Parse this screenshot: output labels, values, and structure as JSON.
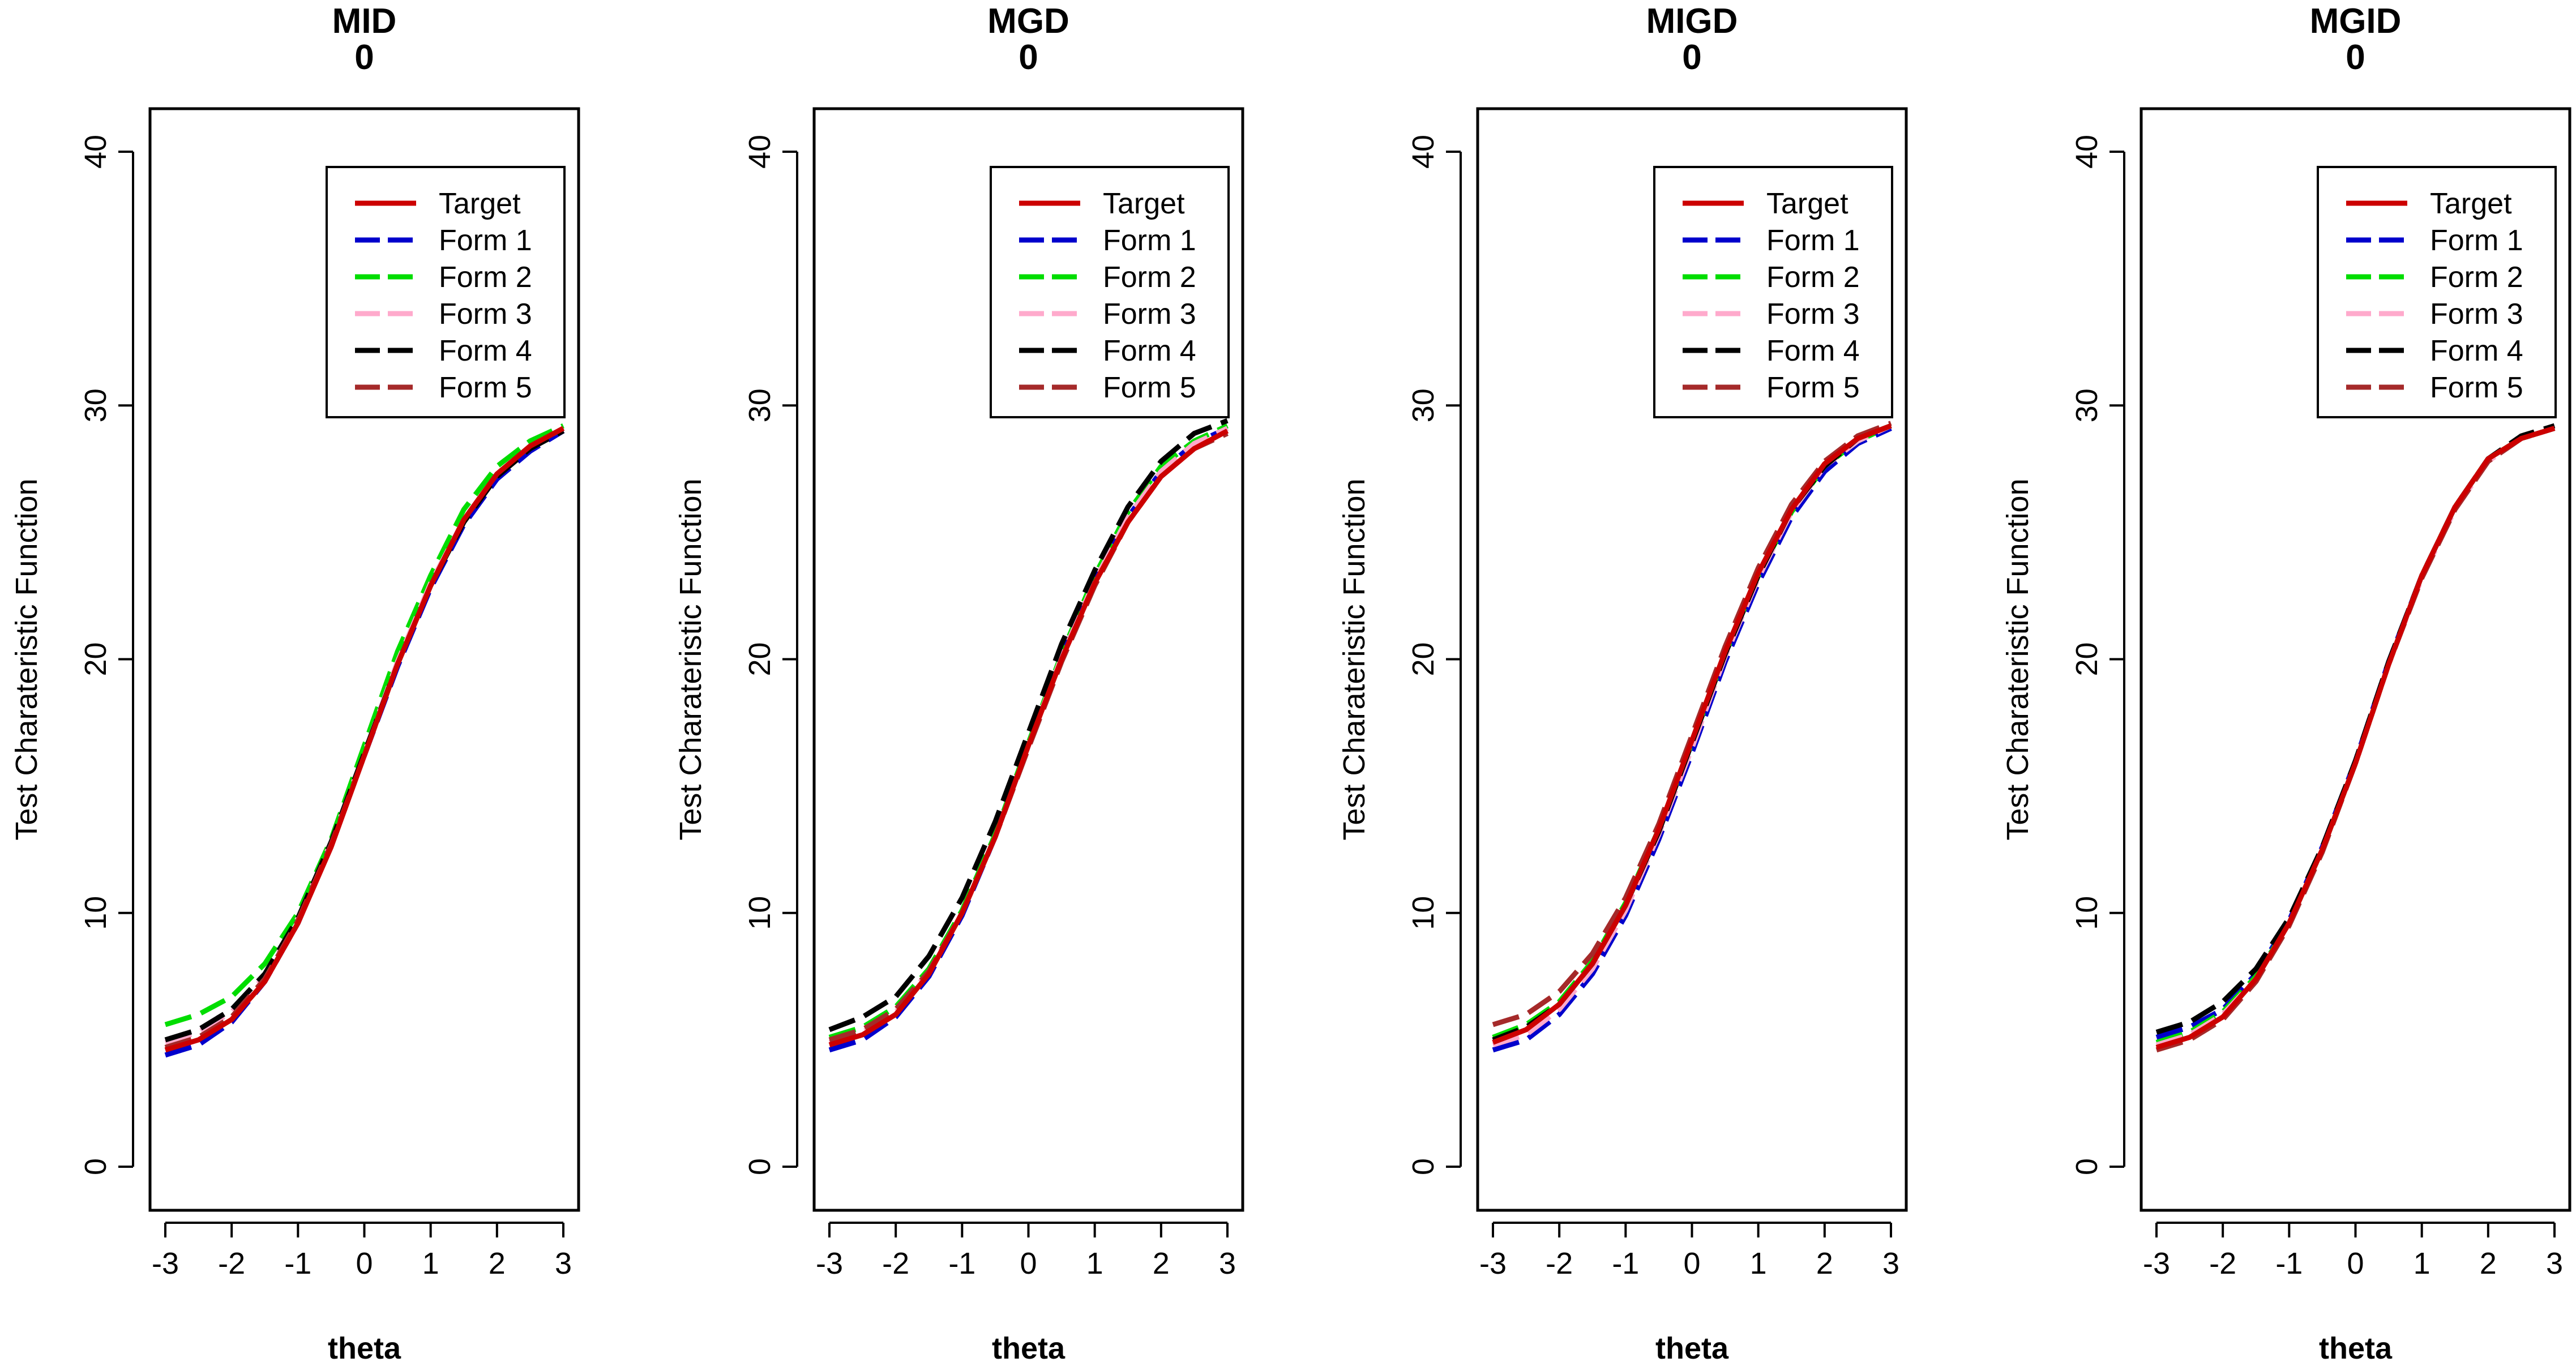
{
  "theme": {
    "background": "#ffffff",
    "axis_color": "#000000"
  },
  "chart_data": [
    {
      "type": "line",
      "title": "MID",
      "subtitle": "0",
      "xlabel": "theta",
      "ylabel": "Test Charateristic Function",
      "xlim": [
        -3,
        3
      ],
      "ylim": [
        0,
        40
      ],
      "xticks": [
        "-3",
        "-2",
        "-1",
        "0",
        "1",
        "2",
        "3"
      ],
      "yticks": [
        "0",
        "10",
        "20",
        "30",
        "40"
      ],
      "legend_position": "top-right",
      "grid": false,
      "x": [
        -3,
        -2.5,
        -2,
        -1.5,
        -1,
        -0.5,
        0,
        0.5,
        1,
        1.5,
        2,
        2.5,
        3
      ],
      "series": [
        {
          "name": "Target",
          "color": "#cc0000",
          "values": [
            4.6,
            5.0,
            5.8,
            7.3,
            9.6,
            12.6,
            16.2,
            19.8,
            22.9,
            25.5,
            27.3,
            28.4,
            29.1
          ]
        },
        {
          "name": "Form 1",
          "color": "#0000cc",
          "values": [
            4.4,
            4.8,
            5.7,
            7.3,
            9.6,
            12.7,
            16.2,
            19.7,
            22.8,
            25.3,
            27.1,
            28.2,
            29.0
          ]
        },
        {
          "name": "Form 2",
          "color": "#00dd00",
          "values": [
            5.6,
            6.0,
            6.7,
            8.0,
            10.0,
            12.9,
            16.6,
            20.3,
            23.3,
            25.9,
            27.6,
            28.6,
            29.2
          ]
        },
        {
          "name": "Form 3",
          "color": "#ffaacc",
          "values": [
            4.9,
            5.3,
            6.1,
            7.5,
            9.8,
            12.8,
            16.3,
            19.9,
            23.0,
            25.5,
            27.3,
            28.4,
            29.1
          ]
        },
        {
          "name": "Form 4",
          "color": "#000000",
          "values": [
            5.0,
            5.4,
            6.2,
            7.6,
            9.8,
            12.8,
            16.3,
            19.8,
            22.9,
            25.4,
            27.2,
            28.3,
            29.0
          ]
        },
        {
          "name": "Form 5",
          "color": "#a52a2a",
          "values": [
            4.7,
            5.1,
            5.9,
            7.4,
            9.7,
            12.7,
            16.2,
            19.8,
            22.9,
            25.5,
            27.3,
            28.4,
            29.1
          ]
        }
      ]
    },
    {
      "type": "line",
      "title": "MGD",
      "subtitle": "0",
      "xlabel": "theta",
      "ylabel": "Test Charateristic Function",
      "xlim": [
        -3,
        3
      ],
      "ylim": [
        0,
        40
      ],
      "xticks": [
        "-3",
        "-2",
        "-1",
        "0",
        "1",
        "2",
        "3"
      ],
      "yticks": [
        "0",
        "10",
        "20",
        "30",
        "40"
      ],
      "legend_position": "top-right",
      "grid": false,
      "x": [
        -3,
        -2.5,
        -2,
        -1.5,
        -1,
        -0.5,
        0,
        0.5,
        1,
        1.5,
        2,
        2.5,
        3
      ],
      "series": [
        {
          "name": "Target",
          "color": "#cc0000",
          "values": [
            4.8,
            5.2,
            6.0,
            7.6,
            10.0,
            13.0,
            16.6,
            20.0,
            23.0,
            25.4,
            27.2,
            28.3,
            29.0
          ]
        },
        {
          "name": "Form 1",
          "color": "#0000cc",
          "values": [
            4.6,
            5.0,
            5.9,
            7.5,
            9.9,
            13.0,
            16.6,
            20.1,
            23.1,
            25.6,
            27.4,
            28.5,
            29.1
          ]
        },
        {
          "name": "Form 2",
          "color": "#00dd00",
          "values": [
            5.1,
            5.5,
            6.3,
            7.8,
            10.1,
            13.1,
            16.7,
            20.2,
            23.3,
            25.8,
            27.6,
            28.6,
            29.2
          ]
        },
        {
          "name": "Form 3",
          "color": "#ffaacc",
          "values": [
            4.9,
            5.3,
            6.1,
            7.7,
            10.0,
            13.0,
            16.6,
            20.1,
            23.1,
            25.6,
            27.4,
            28.5,
            29.1
          ]
        },
        {
          "name": "Form 4",
          "color": "#000000",
          "values": [
            5.4,
            5.9,
            6.7,
            8.3,
            10.6,
            13.6,
            17.1,
            20.6,
            23.5,
            26.0,
            27.8,
            28.9,
            29.4
          ]
        },
        {
          "name": "Form 5",
          "color": "#a52a2a",
          "values": [
            5.0,
            5.4,
            6.2,
            7.7,
            10.0,
            13.0,
            16.5,
            19.9,
            22.9,
            25.4,
            27.2,
            28.3,
            28.9
          ]
        }
      ]
    },
    {
      "type": "line",
      "title": "MIGD",
      "subtitle": "0",
      "xlabel": "theta",
      "ylabel": "Test Charateristic Function",
      "xlim": [
        -3,
        3
      ],
      "ylim": [
        0,
        40
      ],
      "xticks": [
        "-3",
        "-2",
        "-1",
        "0",
        "1",
        "2",
        "3"
      ],
      "yticks": [
        "0",
        "10",
        "20",
        "30",
        "40"
      ],
      "legend_position": "top-right",
      "grid": false,
      "x": [
        -3,
        -2.5,
        -2,
        -1.5,
        -1,
        -0.5,
        0,
        0.5,
        1,
        1.5,
        2,
        2.5,
        3
      ],
      "series": [
        {
          "name": "Target",
          "color": "#cc0000",
          "values": [
            4.9,
            5.4,
            6.4,
            8.0,
            10.3,
            13.3,
            16.8,
            20.3,
            23.4,
            25.9,
            27.7,
            28.7,
            29.2
          ]
        },
        {
          "name": "Form 1",
          "color": "#0000cc",
          "values": [
            4.6,
            5.0,
            6.0,
            7.6,
            9.9,
            12.9,
            16.3,
            19.9,
            23.0,
            25.6,
            27.4,
            28.5,
            29.1
          ]
        },
        {
          "name": "Form 2",
          "color": "#00dd00",
          "values": [
            5.1,
            5.6,
            6.5,
            8.1,
            10.4,
            13.3,
            16.7,
            20.2,
            23.3,
            25.8,
            27.6,
            28.6,
            29.2
          ]
        },
        {
          "name": "Form 3",
          "color": "#ffaacc",
          "values": [
            4.8,
            5.2,
            6.2,
            7.8,
            10.1,
            13.1,
            16.5,
            20.1,
            23.2,
            25.8,
            27.6,
            28.6,
            29.2
          ]
        },
        {
          "name": "Form 4",
          "color": "#000000",
          "values": [
            5.0,
            5.5,
            6.4,
            8.0,
            10.3,
            13.2,
            16.7,
            20.2,
            23.3,
            25.9,
            27.6,
            28.7,
            29.2
          ]
        },
        {
          "name": "Form 5",
          "color": "#a52a2a",
          "values": [
            5.6,
            6.0,
            6.9,
            8.4,
            10.6,
            13.5,
            17.0,
            20.5,
            23.6,
            26.1,
            27.8,
            28.8,
            29.3
          ]
        }
      ]
    },
    {
      "type": "line",
      "title": "MGID",
      "subtitle": "0",
      "xlabel": "theta",
      "ylabel": "Test Charateristic Function",
      "xlim": [
        -3,
        3
      ],
      "ylim": [
        0,
        40
      ],
      "xticks": [
        "-3",
        "-2",
        "-1",
        "0",
        "1",
        "2",
        "3"
      ],
      "yticks": [
        "0",
        "10",
        "20",
        "30",
        "40"
      ],
      "legend_position": "top-right",
      "grid": false,
      "x": [
        -3,
        -2.5,
        -2,
        -1.5,
        -1,
        -0.5,
        0,
        0.5,
        1,
        1.5,
        2,
        2.5,
        3
      ],
      "series": [
        {
          "name": "Target",
          "color": "#cc0000",
          "values": [
            4.7,
            5.1,
            5.9,
            7.4,
            9.6,
            12.5,
            15.9,
            19.8,
            23.3,
            26.0,
            27.9,
            28.7,
            29.1
          ]
        },
        {
          "name": "Form 1",
          "color": "#0000cc",
          "values": [
            5.1,
            5.5,
            6.2,
            7.6,
            9.7,
            12.6,
            16.0,
            19.9,
            23.3,
            26.0,
            27.9,
            28.7,
            29.1
          ]
        },
        {
          "name": "Form 2",
          "color": "#00dd00",
          "values": [
            4.9,
            5.3,
            6.1,
            7.5,
            9.6,
            12.5,
            15.9,
            19.8,
            23.3,
            26.0,
            27.9,
            28.7,
            29.1
          ]
        },
        {
          "name": "Form 3",
          "color": "#ffaacc",
          "values": [
            4.8,
            5.2,
            6.0,
            7.4,
            9.6,
            12.5,
            15.9,
            19.8,
            23.2,
            25.9,
            27.8,
            28.7,
            29.1
          ]
        },
        {
          "name": "Form 4",
          "color": "#000000",
          "values": [
            5.3,
            5.7,
            6.5,
            7.8,
            9.8,
            12.6,
            16.0,
            19.9,
            23.3,
            26.0,
            27.9,
            28.8,
            29.2
          ]
        },
        {
          "name": "Form 5",
          "color": "#a52a2a",
          "values": [
            4.6,
            5.0,
            5.8,
            7.3,
            9.5,
            12.4,
            15.9,
            19.8,
            23.2,
            25.9,
            27.8,
            28.7,
            29.1
          ]
        }
      ]
    }
  ]
}
